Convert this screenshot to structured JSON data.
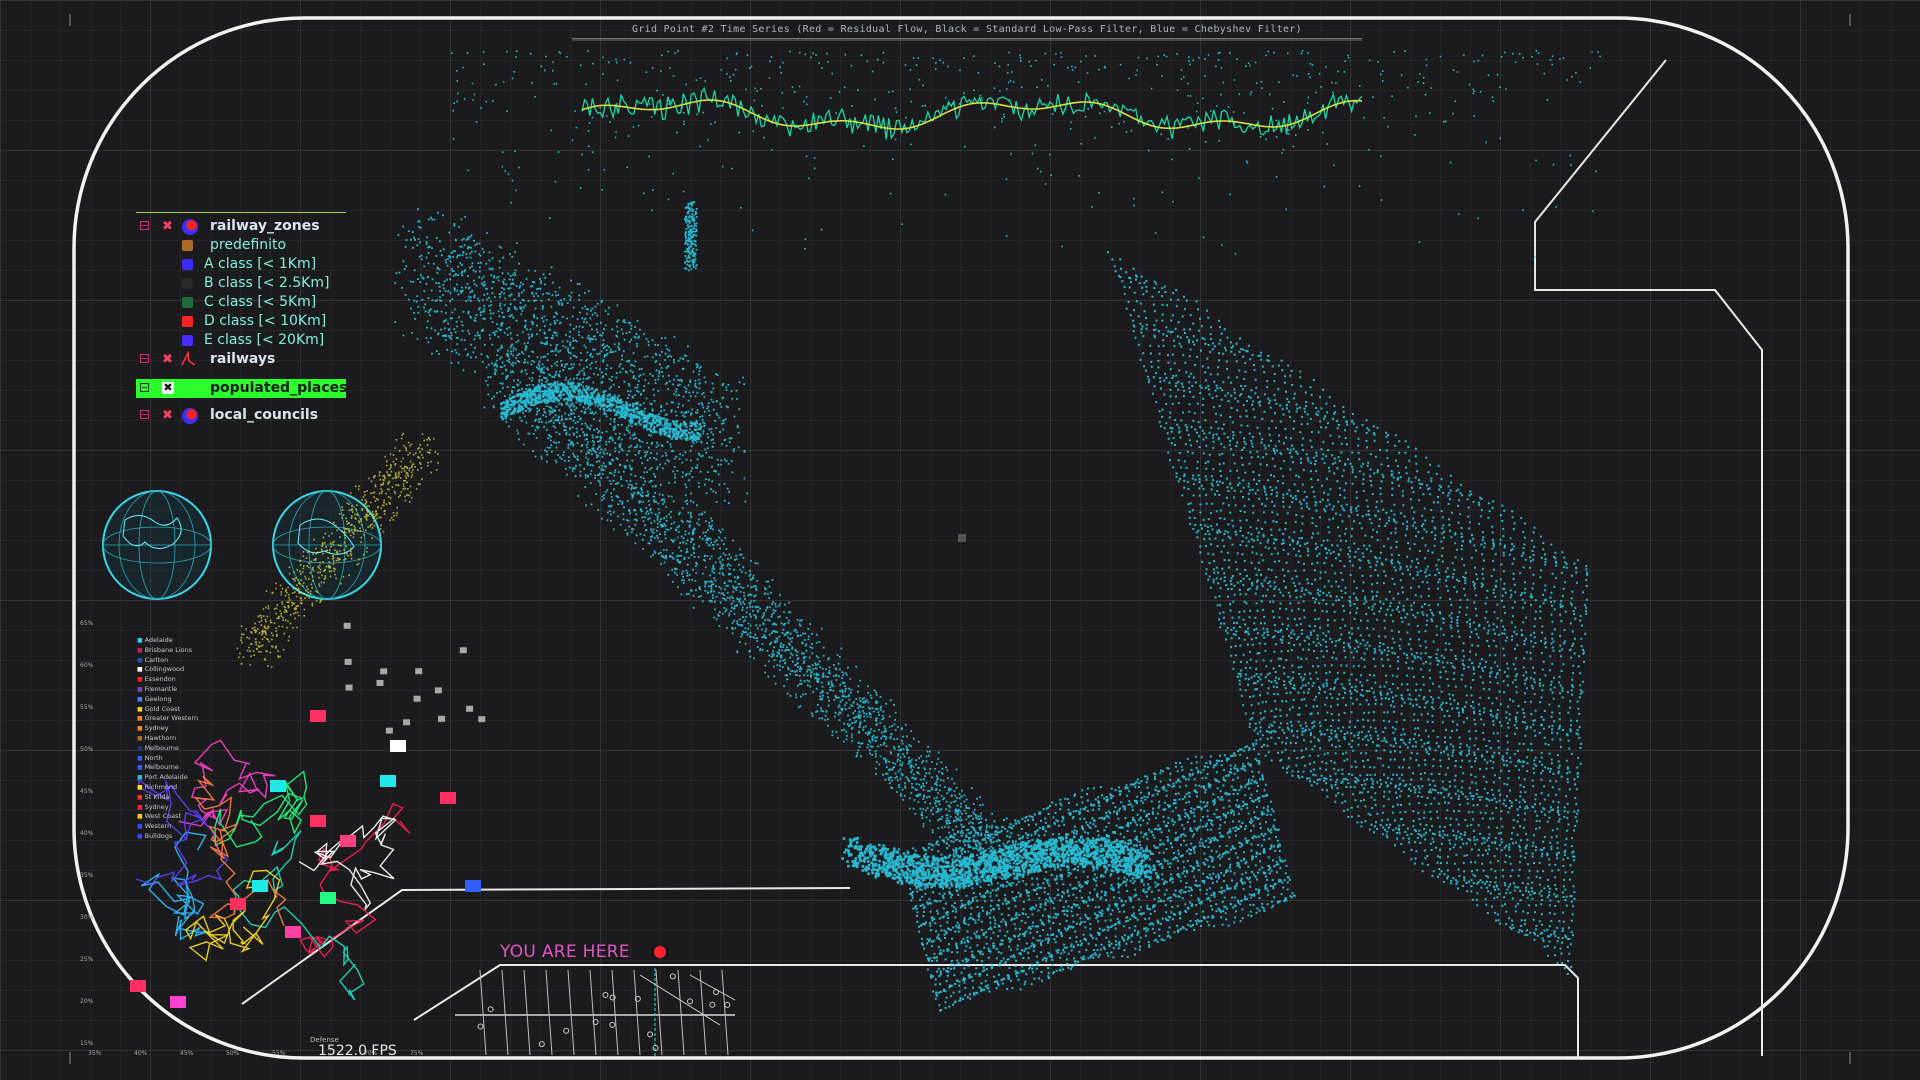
{
  "time_series": {
    "title": "Grid Point #2 Time Series (Red = Residual Flow, Black = Standard Low-Pass Filter, Blue = Chebyshev Filter)"
  },
  "legend": {
    "railway_zones": {
      "label": "railway_zones",
      "classes": [
        {
          "label": "predefinito",
          "color": "#b06a2a"
        },
        {
          "label": "A class [< 1Km]",
          "color": "#3a2cff"
        },
        {
          "label": "B class [< 2.5Km]",
          "color": "#2a2a2a"
        },
        {
          "label": "C class [< 5Km]",
          "color": "#1f6b3a"
        },
        {
          "label": "D class [< 10Km]",
          "color": "#ff2424"
        },
        {
          "label": "E class [< 20Km]",
          "color": "#4a2cff"
        }
      ]
    },
    "railways": {
      "label": "railways"
    },
    "populated_places": {
      "label": "populated_places"
    },
    "local_councils": {
      "label": "local_councils"
    }
  },
  "teams_chart": {
    "teams": [
      {
        "name": "Adelaide",
        "color": "#3cc8ff"
      },
      {
        "name": "Brisbane Lions",
        "color": "#c02060"
      },
      {
        "name": "Carlton",
        "color": "#2050c0"
      },
      {
        "name": "Collingwood",
        "color": "#ffffff"
      },
      {
        "name": "Essendon",
        "color": "#ff2020"
      },
      {
        "name": "Fremantle",
        "color": "#8040c0"
      },
      {
        "name": "Geelong",
        "color": "#4080ff"
      },
      {
        "name": "Gold Coast",
        "color": "#ffd020"
      },
      {
        "name": "Greater Western",
        "color": "#ff8020"
      },
      {
        "name": "Sydney",
        "color": "#ff8020"
      },
      {
        "name": "Hawthorn",
        "color": "#a07020"
      },
      {
        "name": "Melbourne",
        "color": "#203080"
      },
      {
        "name": "North",
        "color": "#3060ff"
      },
      {
        "name": "Melbourne",
        "color": "#3060ff"
      },
      {
        "name": "Port Adelaide",
        "color": "#20c0c0"
      },
      {
        "name": "Richmond",
        "color": "#ffe020"
      },
      {
        "name": "St Kilda",
        "color": "#ff3030"
      },
      {
        "name": "Sydney",
        "color": "#ff2040"
      },
      {
        "name": "West Coast",
        "color": "#ffd000"
      },
      {
        "name": "Western",
        "color": "#3050ff"
      },
      {
        "name": "Bulldogs",
        "color": "#3050ff"
      }
    ],
    "y_ticks": [
      "65%",
      "60%",
      "55%",
      "50%",
      "45%",
      "40%",
      "35%",
      "30%",
      "25%",
      "20%",
      "15%"
    ],
    "x_ticks": [
      "35%",
      "40%",
      "45%",
      "50%",
      "55%",
      "Defense",
      "70%",
      "75%"
    ],
    "x_label": "Defense"
  },
  "hud": {
    "you_are_here": "YOU ARE HERE",
    "fps": "1522.0 FPS"
  },
  "colors": {
    "cyan": "#29d3f0",
    "pink": "#e056c8",
    "highlight": "#2bff2b",
    "marker": "#ff2030"
  }
}
